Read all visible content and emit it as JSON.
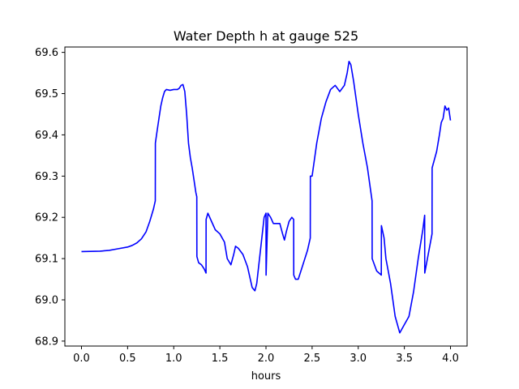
{
  "chart_data": {
    "type": "line",
    "title": "Water Depth h at gauge 525",
    "xlabel": "hours",
    "ylabel": "",
    "xlim": [
      -0.18,
      4.18
    ],
    "ylim": [
      68.888,
      69.613
    ],
    "xticks": [
      0.0,
      0.5,
      1.0,
      1.5,
      2.0,
      2.5,
      3.0,
      3.5,
      4.0
    ],
    "xtick_labels": [
      "0.0",
      "0.5",
      "1.0",
      "1.5",
      "2.0",
      "2.5",
      "3.0",
      "3.5",
      "4.0"
    ],
    "yticks": [
      68.9,
      69.0,
      69.1,
      69.2,
      69.3,
      69.4,
      69.5,
      69.6
    ],
    "ytick_labels": [
      "68.9",
      "69.0",
      "69.1",
      "69.2",
      "69.3",
      "69.4",
      "69.5",
      "69.6"
    ],
    "grid": false,
    "series": [
      {
        "color": "#0000ff",
        "points": [
          [
            0.0,
            69.117
          ],
          [
            0.2,
            69.118
          ],
          [
            0.3,
            69.12
          ],
          [
            0.4,
            69.124
          ],
          [
            0.5,
            69.128
          ],
          [
            0.55,
            69.132
          ],
          [
            0.6,
            69.138
          ],
          [
            0.65,
            69.148
          ],
          [
            0.7,
            69.165
          ],
          [
            0.74,
            69.19
          ],
          [
            0.78,
            69.22
          ],
          [
            0.8,
            69.24
          ],
          [
            0.801,
            69.38
          ],
          [
            0.82,
            69.41
          ],
          [
            0.84,
            69.44
          ],
          [
            0.86,
            69.47
          ],
          [
            0.88,
            69.49
          ],
          [
            0.9,
            69.505
          ],
          [
            0.92,
            69.51
          ],
          [
            0.96,
            69.508
          ],
          [
            1.0,
            69.51
          ],
          [
            1.04,
            69.51
          ],
          [
            1.06,
            69.513
          ],
          [
            1.08,
            69.52
          ],
          [
            1.1,
            69.522
          ],
          [
            1.12,
            69.505
          ],
          [
            1.14,
            69.45
          ],
          [
            1.16,
            69.38
          ],
          [
            1.18,
            69.345
          ],
          [
            1.2,
            69.32
          ],
          [
            1.22,
            69.29
          ],
          [
            1.24,
            69.26
          ],
          [
            1.25,
            69.25
          ],
          [
            1.251,
            69.105
          ],
          [
            1.27,
            69.09
          ],
          [
            1.3,
            69.085
          ],
          [
            1.33,
            69.075
          ],
          [
            1.35,
            69.065
          ],
          [
            1.351,
            69.195
          ],
          [
            1.37,
            69.21
          ],
          [
            1.4,
            69.195
          ],
          [
            1.43,
            69.18
          ],
          [
            1.45,
            69.17
          ],
          [
            1.5,
            69.16
          ],
          [
            1.55,
            69.14
          ],
          [
            1.58,
            69.1
          ],
          [
            1.62,
            69.085
          ],
          [
            1.65,
            69.11
          ],
          [
            1.67,
            69.13
          ],
          [
            1.7,
            69.125
          ],
          [
            1.75,
            69.11
          ],
          [
            1.8,
            69.08
          ],
          [
            1.83,
            69.05
          ],
          [
            1.85,
            69.03
          ],
          [
            1.88,
            69.022
          ],
          [
            1.9,
            69.04
          ],
          [
            1.95,
            69.14
          ],
          [
            1.98,
            69.2
          ],
          [
            2.0,
            69.21
          ],
          [
            2.001,
            69.06
          ],
          [
            2.02,
            69.21
          ],
          [
            2.05,
            69.2
          ],
          [
            2.08,
            69.185
          ],
          [
            2.1,
            69.185
          ],
          [
            2.15,
            69.185
          ],
          [
            2.18,
            69.16
          ],
          [
            2.2,
            69.145
          ],
          [
            2.22,
            69.165
          ],
          [
            2.25,
            69.19
          ],
          [
            2.28,
            69.2
          ],
          [
            2.3,
            69.195
          ],
          [
            2.301,
            69.06
          ],
          [
            2.32,
            69.05
          ],
          [
            2.35,
            69.05
          ],
          [
            2.4,
            69.085
          ],
          [
            2.45,
            69.12
          ],
          [
            2.48,
            69.15
          ],
          [
            2.481,
            69.3
          ],
          [
            2.5,
            69.3
          ],
          [
            2.55,
            69.38
          ],
          [
            2.6,
            69.44
          ],
          [
            2.65,
            69.48
          ],
          [
            2.7,
            69.51
          ],
          [
            2.75,
            69.52
          ],
          [
            2.8,
            69.505
          ],
          [
            2.85,
            69.52
          ],
          [
            2.88,
            69.55
          ],
          [
            2.9,
            69.578
          ],
          [
            2.92,
            69.57
          ],
          [
            2.95,
            69.53
          ],
          [
            3.0,
            69.45
          ],
          [
            3.05,
            69.38
          ],
          [
            3.1,
            69.32
          ],
          [
            3.15,
            69.24
          ],
          [
            3.151,
            69.1
          ],
          [
            3.2,
            69.07
          ],
          [
            3.25,
            69.06
          ],
          [
            3.251,
            69.18
          ],
          [
            3.28,
            69.15
          ],
          [
            3.3,
            69.1
          ],
          [
            3.35,
            69.04
          ],
          [
            3.4,
            68.96
          ],
          [
            3.45,
            68.92
          ],
          [
            3.5,
            68.94
          ],
          [
            3.55,
            68.96
          ],
          [
            3.6,
            69.02
          ],
          [
            3.65,
            69.1
          ],
          [
            3.7,
            69.17
          ],
          [
            3.72,
            69.205
          ],
          [
            3.721,
            69.065
          ],
          [
            3.75,
            69.1
          ],
          [
            3.8,
            69.16
          ],
          [
            3.801,
            69.32
          ],
          [
            3.85,
            69.36
          ],
          [
            3.88,
            69.4
          ],
          [
            3.9,
            69.43
          ],
          [
            3.92,
            69.44
          ],
          [
            3.94,
            69.47
          ],
          [
            3.96,
            69.46
          ],
          [
            3.98,
            69.465
          ],
          [
            4.0,
            69.435
          ]
        ]
      }
    ]
  }
}
